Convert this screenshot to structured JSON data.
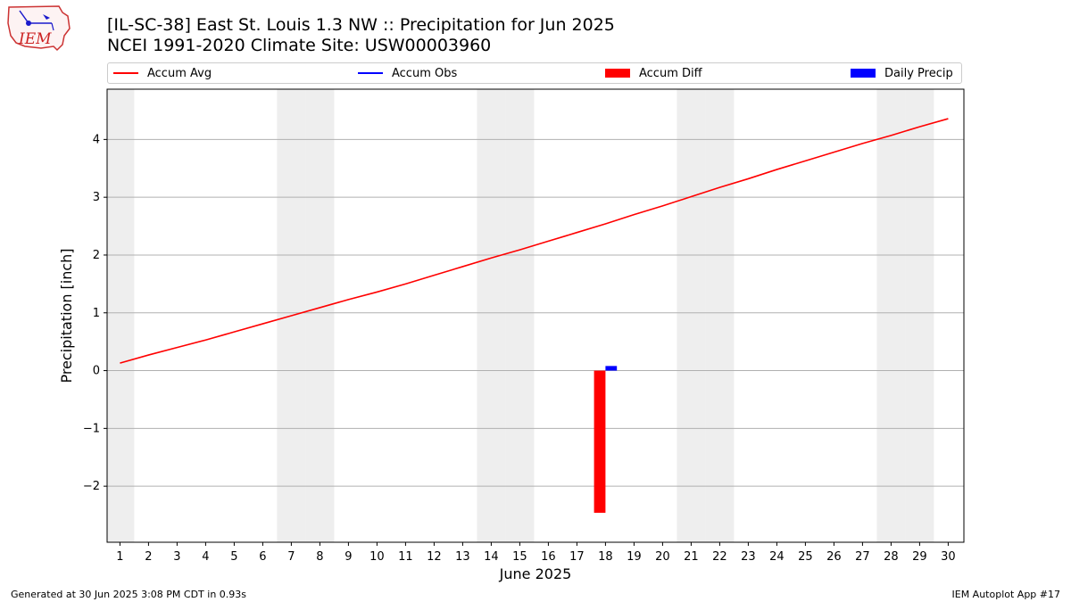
{
  "header": {
    "logo_text": "IEM",
    "title": "[IL-SC-38] East St. Louis 1.3 NW :: Precipitation for Jun 2025",
    "subtitle": "NCEI 1991-2020 Climate Site: USW00003960"
  },
  "footer": {
    "generated": "Generated at 30 Jun 2025 3:08 PM CDT in 0.93s",
    "app": "IEM Autoplot App #17"
  },
  "colors": {
    "avg": "#ff0000",
    "obs": "#0000ff",
    "diff": "#ff0000",
    "daily": "#0000ff",
    "weekend_band": "#eeeeee",
    "grid": "#b0b0b0"
  },
  "chart_data": {
    "type": "bar",
    "xlabel": "June 2025",
    "ylabel": "Precipitation [inch]",
    "xlim": [
      0.55,
      30.55
    ],
    "ylim": [
      -2.97,
      4.87
    ],
    "yticks": [
      -2,
      -1,
      0,
      1,
      2,
      3,
      4
    ],
    "xticks": [
      1,
      2,
      3,
      4,
      5,
      6,
      7,
      8,
      9,
      10,
      11,
      12,
      13,
      14,
      15,
      16,
      17,
      18,
      19,
      20,
      21,
      22,
      23,
      24,
      25,
      26,
      27,
      28,
      29,
      30
    ],
    "ytick_labels": [
      "−2",
      "−1",
      "0",
      "1",
      "2",
      "3",
      "4"
    ],
    "xtick_labels": [
      "1",
      "2",
      "3",
      "4",
      "5",
      "6",
      "7",
      "8",
      "9",
      "10",
      "11",
      "12",
      "13",
      "14",
      "15",
      "16",
      "17",
      "18",
      "19",
      "20",
      "21",
      "22",
      "23",
      "24",
      "25",
      "26",
      "27",
      "28",
      "29",
      "30"
    ],
    "grid": "horizontal",
    "legend": "top (above plot, 4 columns)",
    "weekend_days": [
      1,
      7,
      8,
      14,
      15,
      21,
      22,
      28,
      29
    ],
    "series": [
      {
        "name": "Accum Avg",
        "kind": "line",
        "x": [
          1,
          2,
          3,
          4,
          5,
          6,
          7,
          8,
          9,
          10,
          11,
          12,
          13,
          14,
          15,
          16,
          17,
          18,
          19,
          20,
          21,
          22,
          23,
          24,
          25,
          26,
          27,
          28,
          29,
          30
        ],
        "values": [
          0.13,
          0.27,
          0.4,
          0.53,
          0.67,
          0.81,
          0.95,
          1.09,
          1.23,
          1.36,
          1.5,
          1.65,
          1.8,
          1.95,
          2.09,
          2.24,
          2.39,
          2.54,
          2.7,
          2.85,
          3.01,
          3.17,
          3.32,
          3.48,
          3.63,
          3.78,
          3.93,
          4.07,
          4.22,
          4.36
        ]
      },
      {
        "name": "Accum Obs",
        "kind": "line",
        "x": [],
        "values": []
      },
      {
        "name": "Accum Diff",
        "kind": "bar",
        "x": [
          18
        ],
        "values": [
          -2.46
        ]
      },
      {
        "name": "Daily Precip",
        "kind": "bar",
        "x": [
          18
        ],
        "values": [
          0.08
        ]
      }
    ]
  }
}
